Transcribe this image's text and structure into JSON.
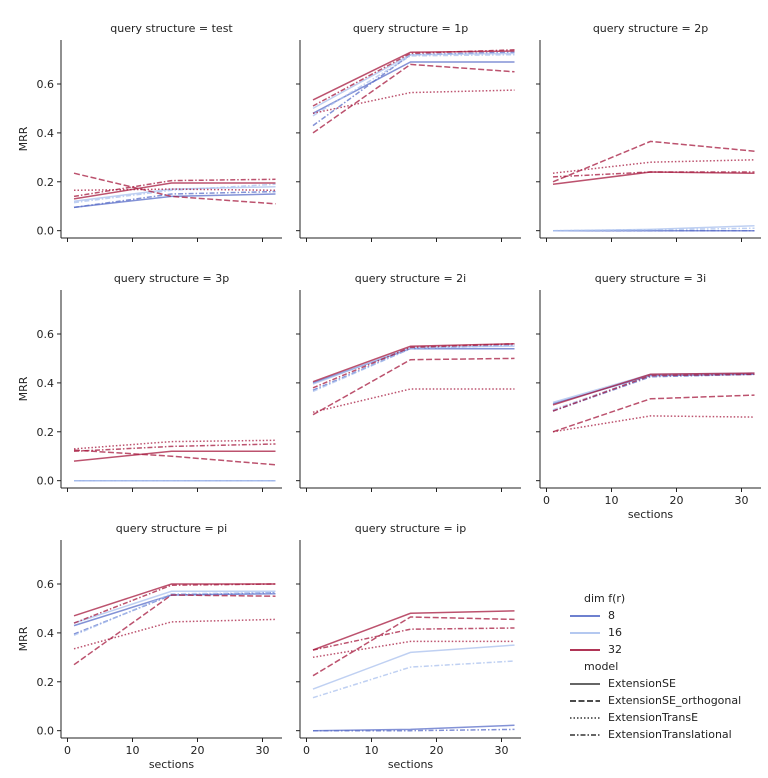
{
  "chart_data": {
    "type": "line",
    "xlabel": "sections",
    "ylabel": "MRR",
    "xlim": [
      -1,
      33
    ],
    "ylim": [
      -0.03,
      0.78
    ],
    "xticks": [
      0,
      10,
      20,
      30
    ],
    "yticks": [
      0.0,
      0.2,
      0.4,
      0.6
    ],
    "x": [
      1,
      16,
      32
    ],
    "grid": false,
    "legend_position": "bottom-right",
    "hue": {
      "title": "dim f(r)",
      "levels": [
        {
          "label": "8",
          "color": "#5a6ec8"
        },
        {
          "label": "16",
          "color": "#aac0ee"
        },
        {
          "label": "32",
          "color": "#a5183e"
        }
      ]
    },
    "style": {
      "title": "model",
      "levels": [
        {
          "label": "ExtensionSE",
          "dash": "solid"
        },
        {
          "label": "ExtensionSE_orthogonal",
          "dash": "dashed"
        },
        {
          "label": "ExtensionTransE",
          "dash": "dotted"
        },
        {
          "label": "ExtensionTranslational",
          "dash": "dashdot"
        }
      ]
    },
    "panels": [
      {
        "title": "query structure = test",
        "series": [
          {
            "dim": "8",
            "model": "ExtensionSE",
            "values": [
              0.095,
              0.14,
              0.15
            ]
          },
          {
            "dim": "8",
            "model": "ExtensionTranslational",
            "values": [
              0.095,
              0.15,
              0.16
            ]
          },
          {
            "dim": "16",
            "model": "ExtensionSE",
            "values": [
              0.12,
              0.17,
              0.18
            ]
          },
          {
            "dim": "16",
            "model": "ExtensionTranslational",
            "values": [
              0.115,
              0.165,
              0.19
            ]
          },
          {
            "dim": "32",
            "model": "ExtensionSE",
            "values": [
              0.13,
              0.195,
              0.195
            ]
          },
          {
            "dim": "32",
            "model": "ExtensionSE_orthogonal",
            "values": [
              0.235,
              0.14,
              0.11
            ]
          },
          {
            "dim": "32",
            "model": "ExtensionTransE",
            "values": [
              0.165,
              0.17,
              0.165
            ]
          },
          {
            "dim": "32",
            "model": "ExtensionTranslational",
            "values": [
              0.14,
              0.205,
              0.21
            ]
          }
        ]
      },
      {
        "title": "query structure = 1p",
        "series": [
          {
            "dim": "8",
            "model": "ExtensionSE",
            "values": [
              0.48,
              0.69,
              0.69
            ]
          },
          {
            "dim": "8",
            "model": "ExtensionTranslational",
            "values": [
              0.43,
              0.72,
              0.73
            ]
          },
          {
            "dim": "16",
            "model": "ExtensionSE",
            "values": [
              0.5,
              0.72,
              0.725
            ]
          },
          {
            "dim": "16",
            "model": "ExtensionTranslational",
            "values": [
              0.47,
              0.715,
              0.72
            ]
          },
          {
            "dim": "32",
            "model": "ExtensionSE",
            "values": [
              0.535,
              0.73,
              0.735
            ]
          },
          {
            "dim": "32",
            "model": "ExtensionSE_orthogonal",
            "values": [
              0.4,
              0.68,
              0.65
            ]
          },
          {
            "dim": "32",
            "model": "ExtensionTransE",
            "values": [
              0.48,
              0.565,
              0.575
            ]
          },
          {
            "dim": "32",
            "model": "ExtensionTranslational",
            "values": [
              0.51,
              0.725,
              0.74
            ]
          }
        ]
      },
      {
        "title": "query structure = 2p",
        "series": [
          {
            "dim": "8",
            "model": "ExtensionSE",
            "values": [
              0.0,
              0.0,
              0.0
            ]
          },
          {
            "dim": "8",
            "model": "ExtensionTranslational",
            "values": [
              0.0,
              0.0,
              0.0
            ]
          },
          {
            "dim": "16",
            "model": "ExtensionSE",
            "values": [
              0.0,
              0.005,
              0.02
            ]
          },
          {
            "dim": "16",
            "model": "ExtensionTranslational",
            "values": [
              0.0,
              0.003,
              0.01
            ]
          },
          {
            "dim": "32",
            "model": "ExtensionSE",
            "values": [
              0.19,
              0.24,
              0.235
            ]
          },
          {
            "dim": "32",
            "model": "ExtensionSE_orthogonal",
            "values": [
              0.2,
              0.365,
              0.325
            ]
          },
          {
            "dim": "32",
            "model": "ExtensionTransE",
            "values": [
              0.235,
              0.28,
              0.29
            ]
          },
          {
            "dim": "32",
            "model": "ExtensionTranslational",
            "values": [
              0.22,
              0.24,
              0.24
            ]
          }
        ]
      },
      {
        "title": "query structure = 3p",
        "series": [
          {
            "dim": "8",
            "model": "ExtensionSE",
            "values": [
              0.0,
              0.0,
              0.0
            ]
          },
          {
            "dim": "8",
            "model": "ExtensionTranslational",
            "values": [
              0.0,
              0.0,
              0.0
            ]
          },
          {
            "dim": "16",
            "model": "ExtensionSE",
            "values": [
              0.0,
              0.0,
              0.0
            ]
          },
          {
            "dim": "16",
            "model": "ExtensionTranslational",
            "values": [
              0.0,
              0.0,
              0.0
            ]
          },
          {
            "dim": "32",
            "model": "ExtensionSE",
            "values": [
              0.08,
              0.12,
              0.12
            ]
          },
          {
            "dim": "32",
            "model": "ExtensionSE_orthogonal",
            "values": [
              0.125,
              0.1,
              0.065
            ]
          },
          {
            "dim": "32",
            "model": "ExtensionTransE",
            "values": [
              0.13,
              0.16,
              0.165
            ]
          },
          {
            "dim": "32",
            "model": "ExtensionTranslational",
            "values": [
              0.12,
              0.14,
              0.15
            ]
          }
        ]
      },
      {
        "title": "query structure = 2i",
        "series": [
          {
            "dim": "8",
            "model": "ExtensionSE",
            "values": [
              0.4,
              0.54,
              0.54
            ]
          },
          {
            "dim": "8",
            "model": "ExtensionTranslational",
            "values": [
              0.37,
              0.54,
              0.555
            ]
          },
          {
            "dim": "16",
            "model": "ExtensionSE",
            "values": [
              0.395,
              0.545,
              0.55
            ]
          },
          {
            "dim": "16",
            "model": "ExtensionTranslational",
            "values": [
              0.365,
              0.54,
              0.555
            ]
          },
          {
            "dim": "32",
            "model": "ExtensionSE",
            "values": [
              0.405,
              0.55,
              0.56
            ]
          },
          {
            "dim": "32",
            "model": "ExtensionSE_orthogonal",
            "values": [
              0.27,
              0.495,
              0.5
            ]
          },
          {
            "dim": "32",
            "model": "ExtensionTransE",
            "values": [
              0.28,
              0.375,
              0.375
            ]
          },
          {
            "dim": "32",
            "model": "ExtensionTranslational",
            "values": [
              0.38,
              0.545,
              0.56
            ]
          }
        ]
      },
      {
        "title": "query structure = 3i",
        "series": [
          {
            "dim": "8",
            "model": "ExtensionSE",
            "values": [
              0.315,
              0.43,
              0.435
            ]
          },
          {
            "dim": "8",
            "model": "ExtensionTranslational",
            "values": [
              0.285,
              0.425,
              0.435
            ]
          },
          {
            "dim": "16",
            "model": "ExtensionSE",
            "values": [
              0.32,
              0.435,
              0.44
            ]
          },
          {
            "dim": "16",
            "model": "ExtensionTranslational",
            "values": [
              0.29,
              0.43,
              0.44
            ]
          },
          {
            "dim": "32",
            "model": "ExtensionSE",
            "values": [
              0.31,
              0.435,
              0.44
            ]
          },
          {
            "dim": "32",
            "model": "ExtensionSE_orthogonal",
            "values": [
              0.2,
              0.335,
              0.35
            ]
          },
          {
            "dim": "32",
            "model": "ExtensionTransE",
            "values": [
              0.2,
              0.265,
              0.26
            ]
          },
          {
            "dim": "32",
            "model": "ExtensionTranslational",
            "values": [
              0.285,
              0.43,
              0.435
            ]
          }
        ]
      },
      {
        "title": "query structure = pi",
        "series": [
          {
            "dim": "8",
            "model": "ExtensionSE",
            "values": [
              0.43,
              0.555,
              0.56
            ]
          },
          {
            "dim": "8",
            "model": "ExtensionTranslational",
            "values": [
              0.395,
              0.555,
              0.565
            ]
          },
          {
            "dim": "16",
            "model": "ExtensionSE",
            "values": [
              0.44,
              0.57,
              0.57
            ]
          },
          {
            "dim": "16",
            "model": "ExtensionTranslational",
            "values": [
              0.39,
              0.56,
              0.565
            ]
          },
          {
            "dim": "32",
            "model": "ExtensionSE",
            "values": [
              0.47,
              0.6,
              0.6
            ]
          },
          {
            "dim": "32",
            "model": "ExtensionSE_orthogonal",
            "values": [
              0.27,
              0.555,
              0.55
            ]
          },
          {
            "dim": "32",
            "model": "ExtensionTransE",
            "values": [
              0.335,
              0.445,
              0.455
            ]
          },
          {
            "dim": "32",
            "model": "ExtensionTranslational",
            "values": [
              0.44,
              0.595,
              0.6
            ]
          }
        ]
      },
      {
        "title": "query structure = ip",
        "series": [
          {
            "dim": "8",
            "model": "ExtensionSE",
            "values": [
              0.0,
              0.005,
              0.022
            ]
          },
          {
            "dim": "8",
            "model": "ExtensionTranslational",
            "values": [
              0.0,
              0.0,
              0.005
            ]
          },
          {
            "dim": "16",
            "model": "ExtensionSE",
            "values": [
              0.17,
              0.32,
              0.35
            ]
          },
          {
            "dim": "16",
            "model": "ExtensionTranslational",
            "values": [
              0.135,
              0.26,
              0.285
            ]
          },
          {
            "dim": "32",
            "model": "ExtensionSE",
            "values": [
              0.33,
              0.48,
              0.49
            ]
          },
          {
            "dim": "32",
            "model": "ExtensionSE_orthogonal",
            "values": [
              0.225,
              0.465,
              0.455
            ]
          },
          {
            "dim": "32",
            "model": "ExtensionTransE",
            "values": [
              0.3,
              0.365,
              0.365
            ]
          },
          {
            "dim": "32",
            "model": "ExtensionTranslational",
            "values": [
              0.33,
              0.415,
              0.42
            ]
          }
        ]
      }
    ]
  }
}
